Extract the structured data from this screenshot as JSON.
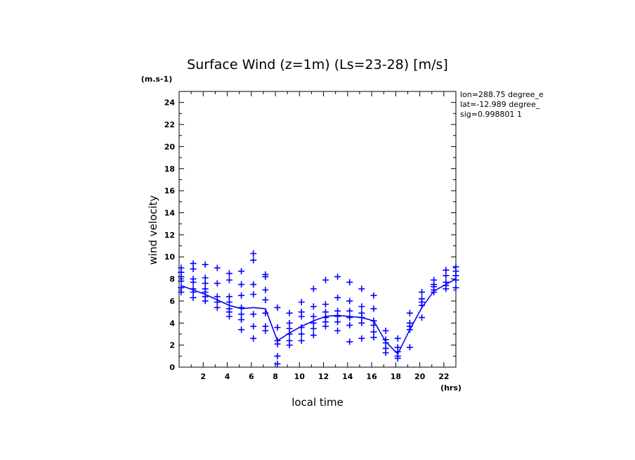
{
  "chart_data": {
    "type": "scatter",
    "title": "Surface Wind (z=1m) (Ls=23-28) [m/s]",
    "xlabel": "local time",
    "ylabel": "wind velocity",
    "x_unit": "(hrs)",
    "y_unit": "(m.s-1)",
    "xlim": [
      0,
      23
    ],
    "ylim": [
      0,
      25
    ],
    "x_ticks": [
      2,
      4,
      6,
      8,
      10,
      12,
      14,
      16,
      18,
      20,
      22
    ],
    "y_ticks": [
      0,
      2,
      4,
      6,
      8,
      10,
      12,
      14,
      16,
      18,
      20,
      22,
      24
    ],
    "info_lines": [
      "lon=288.75 degree_e",
      "lat=-12.989 degree_",
      "sig=0.998801 1"
    ],
    "grid": false,
    "color": "#0000ff",
    "mean_line": {
      "x": [
        0.17,
        1.17,
        2.17,
        3.17,
        4.17,
        5.17,
        6.17,
        7.17,
        8.17,
        9.17,
        10.17,
        11.17,
        12.17,
        13.17,
        14.17,
        15.17,
        16.17,
        17.17,
        18.17,
        19.17,
        20.17,
        21.17,
        22.17,
        23.0
      ],
      "y": [
        7.4,
        7.0,
        6.6,
        6.1,
        5.6,
        5.3,
        5.4,
        5.3,
        2.4,
        3.1,
        3.7,
        4.2,
        4.6,
        4.7,
        4.6,
        4.5,
        4.2,
        2.3,
        1.2,
        3.4,
        5.4,
        6.9,
        7.5,
        8.0
      ]
    },
    "points": {
      "x": [
        0.17,
        0.17,
        0.17,
        0.17,
        0.17,
        0.17,
        1.17,
        1.17,
        1.17,
        1.17,
        1.17,
        1.17,
        1.17,
        2.17,
        2.17,
        2.17,
        2.17,
        2.17,
        2.17,
        2.17,
        3.17,
        3.17,
        3.17,
        3.17,
        3.17,
        4.17,
        4.17,
        4.17,
        4.17,
        4.17,
        4.17,
        4.17,
        5.17,
        5.17,
        5.17,
        5.17,
        5.17,
        5.17,
        5.17,
        6.17,
        6.17,
        6.17,
        6.17,
        6.17,
        6.17,
        6.17,
        7.17,
        7.17,
        7.17,
        7.17,
        7.17,
        7.17,
        7.17,
        8.17,
        8.17,
        8.17,
        8.17,
        8.17,
        8.17,
        9.17,
        9.17,
        9.17,
        9.17,
        9.17,
        9.17,
        10.17,
        10.17,
        10.17,
        10.17,
        10.17,
        10.17,
        11.17,
        11.17,
        11.17,
        11.17,
        11.17,
        11.17,
        12.17,
        12.17,
        12.17,
        12.17,
        12.17,
        12.17,
        13.17,
        13.17,
        13.17,
        13.17,
        13.17,
        13.17,
        14.17,
        14.17,
        14.17,
        14.17,
        14.17,
        14.17,
        15.17,
        15.17,
        15.17,
        15.17,
        15.17,
        15.17,
        16.17,
        16.17,
        16.17,
        16.17,
        16.17,
        16.17,
        17.17,
        17.17,
        17.17,
        17.17,
        17.17,
        18.17,
        18.17,
        18.17,
        18.17,
        18.17,
        19.17,
        19.17,
        19.17,
        19.17,
        19.17,
        20.17,
        20.17,
        20.17,
        20.17,
        20.17,
        21.17,
        21.17,
        21.17,
        21.17,
        21.17,
        22.17,
        22.17,
        22.17,
        22.17,
        22.17,
        23.0,
        23.0,
        23.0,
        23.0,
        23.0
      ],
      "y": [
        9.0,
        8.6,
        8.2,
        7.8,
        7.2,
        6.8,
        9.4,
        8.9,
        8.0,
        7.7,
        7.1,
        6.8,
        6.3,
        9.3,
        8.1,
        7.6,
        7.1,
        6.8,
        6.4,
        6.0,
        9.0,
        7.6,
        6.4,
        5.9,
        5.4,
        8.5,
        7.9,
        6.4,
        5.9,
        5.3,
        5.0,
        4.6,
        8.7,
        7.5,
        6.5,
        5.4,
        4.8,
        4.3,
        3.4,
        10.3,
        9.7,
        7.5,
        6.6,
        4.8,
        3.7,
        2.6,
        8.4,
        8.2,
        7.0,
        6.1,
        4.9,
        3.7,
        3.3,
        5.4,
        3.6,
        2.4,
        2.1,
        1.0,
        0.3,
        4.9,
        4.0,
        3.5,
        3.0,
        2.4,
        2.0,
        5.9,
        5.0,
        4.6,
        3.6,
        3.0,
        2.4,
        7.1,
        5.5,
        4.6,
        4.0,
        3.5,
        2.9,
        7.9,
        5.7,
        5.0,
        4.5,
        4.1,
        3.7,
        8.2,
        6.3,
        5.1,
        4.6,
        4.1,
        3.3,
        7.7,
        6.0,
        5.1,
        4.5,
        3.8,
        2.3,
        7.1,
        5.5,
        4.9,
        4.5,
        4.0,
        2.6,
        6.5,
        5.3,
        4.2,
        3.8,
        3.2,
        2.7,
        3.3,
        2.5,
        2.2,
        1.7,
        1.3,
        2.6,
        1.8,
        1.4,
        1.0,
        0.8,
        4.9,
        4.0,
        3.7,
        3.4,
        1.8,
        6.8,
        6.2,
        5.9,
        5.6,
        4.5,
        7.9,
        7.5,
        7.3,
        7.0,
        6.8,
        8.8,
        8.3,
        7.7,
        7.4,
        7.1,
        9.1,
        8.7,
        8.3,
        7.9,
        7.2
      ]
    }
  }
}
